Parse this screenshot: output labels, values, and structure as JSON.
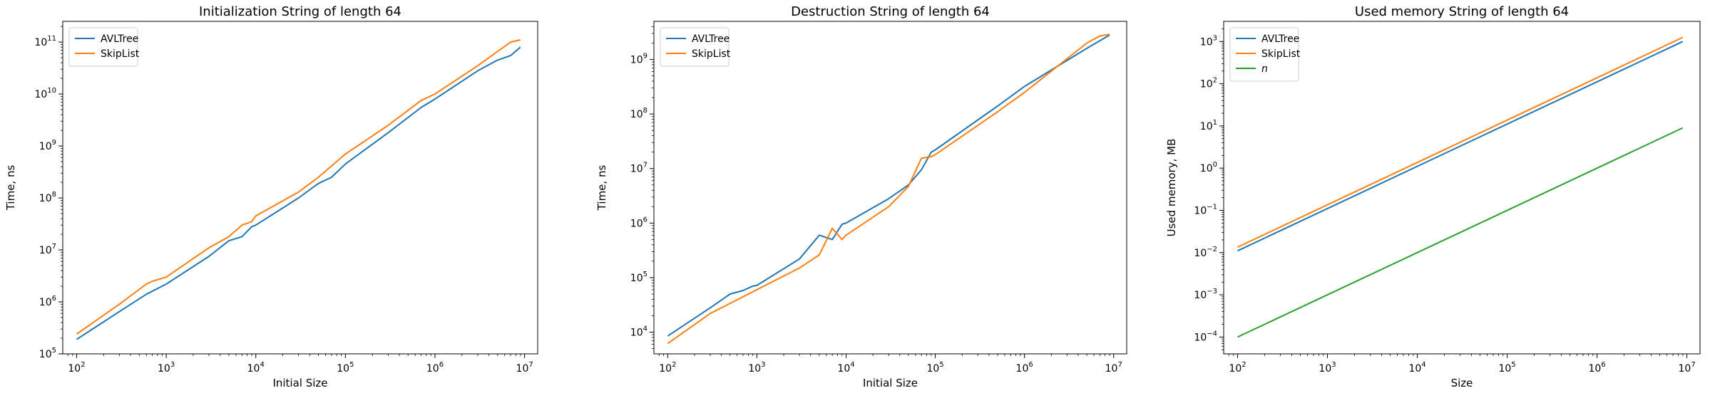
{
  "chart_data": [
    {
      "type": "line",
      "title": "Initialization String of length 64",
      "xlabel": "Initial Size",
      "ylabel": "Time, ns",
      "xscale": "log",
      "yscale": "log",
      "xlim": [
        70,
        14000000
      ],
      "ylim": [
        100000,
        250000000000
      ],
      "xticks": [
        100,
        1000,
        10000,
        100000,
        1000000,
        10000000
      ],
      "xtick_labels": [
        [
          "10",
          "2"
        ],
        [
          "10",
          "3"
        ],
        [
          "10",
          "4"
        ],
        [
          "10",
          "5"
        ],
        [
          "10",
          "6"
        ],
        [
          "10",
          "7"
        ]
      ],
      "yticks": [
        100000,
        1000000,
        10000000,
        100000000,
        1000000000,
        10000000000,
        100000000000
      ],
      "ytick_labels": [
        [
          "10",
          "5"
        ],
        [
          "10",
          "6"
        ],
        [
          "10",
          "7"
        ],
        [
          "10",
          "8"
        ],
        [
          "10",
          "9"
        ],
        [
          "10",
          "10"
        ],
        [
          "10",
          "11"
        ]
      ],
      "legend": "upper-left",
      "series": [
        {
          "name": "AVLTree",
          "color": "#1f77b4",
          "x": [
            100,
            300,
            600,
            1000,
            3000,
            5000,
            7000,
            9000,
            10000,
            30000,
            50000,
            70000,
            100000,
            300000,
            700000,
            1000000,
            3000000,
            5000000,
            7000000,
            9000000
          ],
          "y": [
            190000,
            650000,
            1400000,
            2200000,
            7500000,
            15000000,
            18000000,
            28000000,
            30000000,
            100000000,
            190000000,
            250000000,
            450000000,
            1800000000,
            5500000000,
            8000000000,
            28000000000,
            45000000000,
            55000000000,
            80000000000
          ]
        },
        {
          "name": "SkipList",
          "color": "#ff7f0e",
          "x": [
            100,
            300,
            600,
            700,
            1000,
            3000,
            5000,
            7000,
            9000,
            10000,
            30000,
            50000,
            100000,
            300000,
            700000,
            1000000,
            3000000,
            7000000,
            9000000
          ],
          "y": [
            240000,
            900000,
            2200000,
            2500000,
            3000000,
            11000000,
            18000000,
            30000000,
            35000000,
            45000000,
            130000000,
            250000000,
            700000000,
            2500000000,
            7500000000,
            10000000000,
            35000000000,
            100000000000,
            110000000000
          ]
        }
      ]
    },
    {
      "type": "line",
      "title": "Destruction String of length 64",
      "xlabel": "Initial Size",
      "ylabel": "Time, ns",
      "xscale": "log",
      "yscale": "log",
      "xlim": [
        70,
        14000000
      ],
      "ylim": [
        4000,
        5000000000
      ],
      "xticks": [
        100,
        1000,
        10000,
        100000,
        1000000,
        10000000
      ],
      "xtick_labels": [
        [
          "10",
          "2"
        ],
        [
          "10",
          "3"
        ],
        [
          "10",
          "4"
        ],
        [
          "10",
          "5"
        ],
        [
          "10",
          "6"
        ],
        [
          "10",
          "7"
        ]
      ],
      "yticks": [
        10000,
        100000,
        1000000,
        10000000,
        100000000,
        1000000000
      ],
      "ytick_labels": [
        [
          "10",
          "4"
        ],
        [
          "10",
          "5"
        ],
        [
          "10",
          "6"
        ],
        [
          "10",
          "7"
        ],
        [
          "10",
          "8"
        ],
        [
          "10",
          "9"
        ]
      ],
      "legend": "upper-left",
      "series": [
        {
          "name": "AVLTree",
          "color": "#1f77b4",
          "x": [
            100,
            300,
            500,
            700,
            900,
            1000,
            3000,
            5000,
            7000,
            9000,
            10000,
            30000,
            50000,
            70000,
            90000,
            100000,
            500000,
            1000000,
            5000000,
            9000000
          ],
          "y": [
            8500,
            28000,
            50000,
            58000,
            70000,
            72000,
            220000,
            600000,
            500000,
            950000,
            1000000,
            2800000,
            5000000,
            9500000,
            20000000,
            22000000,
            140000000,
            320000000,
            1600000000,
            2800000000
          ]
        },
        {
          "name": "SkipList",
          "color": "#ff7f0e",
          "x": [
            100,
            300,
            1000,
            3000,
            5000,
            7000,
            9000,
            10000,
            30000,
            50000,
            70000,
            90000,
            100000,
            500000,
            1000000,
            5000000,
            7000000,
            9000000
          ],
          "y": [
            6200,
            22000,
            60000,
            150000,
            260000,
            800000,
            500000,
            600000,
            2000000,
            4700000,
            15500000,
            16500000,
            18000000,
            110000000,
            250000000,
            2000000000,
            2700000000,
            2900000000
          ]
        }
      ]
    },
    {
      "type": "line",
      "title": "Used memory String of length 64",
      "xlabel": "Size",
      "ylabel": "Used memory, MB",
      "xscale": "log",
      "yscale": "log",
      "xlim": [
        70,
        14000000
      ],
      "ylim": [
        4e-05,
        3000
      ],
      "xticks": [
        100,
        1000,
        10000,
        100000,
        1000000,
        10000000
      ],
      "xtick_labels": [
        [
          "10",
          "2"
        ],
        [
          "10",
          "3"
        ],
        [
          "10",
          "4"
        ],
        [
          "10",
          "5"
        ],
        [
          "10",
          "6"
        ],
        [
          "10",
          "7"
        ]
      ],
      "yticks": [
        0.0001,
        0.001,
        0.01,
        0.1,
        1,
        10,
        100,
        1000
      ],
      "ytick_labels": [
        [
          "10",
          "−4"
        ],
        [
          "10",
          "−3"
        ],
        [
          "10",
          "−2"
        ],
        [
          "10",
          "−1"
        ],
        [
          "10",
          "0"
        ],
        [
          "10",
          "1"
        ],
        [
          "10",
          "2"
        ],
        [
          "10",
          "3"
        ]
      ],
      "legend": "upper-left",
      "series": [
        {
          "name": "AVLTree",
          "color": "#1f77b4",
          "x": [
            100,
            9000000
          ],
          "y": [
            0.011,
            1000
          ]
        },
        {
          "name": "SkipList",
          "color": "#ff7f0e",
          "x": [
            100,
            9000000
          ],
          "y": [
            0.0135,
            1250
          ]
        },
        {
          "name": "n",
          "color": "#2ca02c",
          "italic": true,
          "x": [
            100,
            9000000
          ],
          "y": [
            0.0001,
            9
          ]
        }
      ]
    }
  ]
}
